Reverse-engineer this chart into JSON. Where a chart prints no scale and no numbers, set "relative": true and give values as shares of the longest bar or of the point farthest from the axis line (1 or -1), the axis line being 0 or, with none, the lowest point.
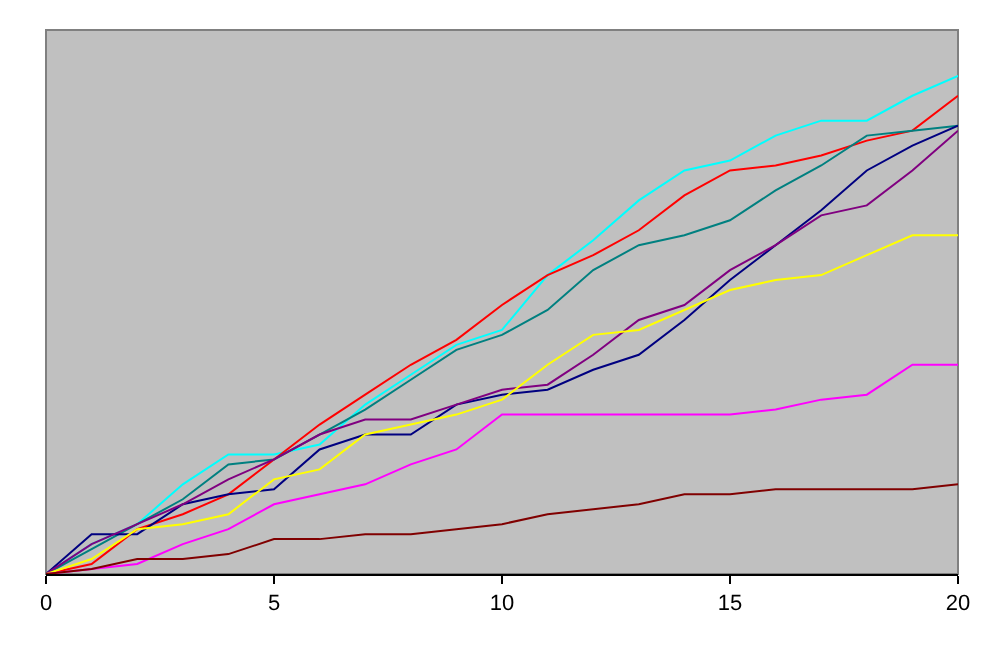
{
  "chart_data": {
    "type": "line",
    "relative": true,
    "x": [
      0,
      1,
      2,
      3,
      4,
      5,
      6,
      7,
      8,
      9,
      10,
      11,
      12,
      13,
      14,
      15,
      16,
      17,
      18,
      19,
      20
    ],
    "xlim": [
      0,
      20
    ],
    "xticks": [
      0,
      5,
      10,
      15,
      20
    ],
    "grid": false,
    "marker": "none",
    "line_style": "solid",
    "series": [
      {
        "color": "#00ffff",
        "values": [
          0,
          0.06,
          0.1,
          0.18,
          0.24,
          0.24,
          0.26,
          0.34,
          0.4,
          0.46,
          0.49,
          0.6,
          0.67,
          0.75,
          0.81,
          0.83,
          0.88,
          0.91,
          0.91,
          0.96,
          1
        ]
      },
      {
        "color": "#ff0000",
        "values": [
          0,
          0.02,
          0.09,
          0.12,
          0.16,
          0.23,
          0.3,
          0.36,
          0.42,
          0.47,
          0.54,
          0.6,
          0.64,
          0.69,
          0.76,
          0.81,
          0.82,
          0.84,
          0.87,
          0.89,
          0.96
        ]
      },
      {
        "color": "#008080",
        "values": [
          0,
          0.05,
          0.1,
          0.15,
          0.22,
          0.23,
          0.28,
          0.33,
          0.39,
          0.45,
          0.48,
          0.53,
          0.61,
          0.66,
          0.68,
          0.71,
          0.77,
          0.82,
          0.88,
          0.89,
          0.9
        ]
      },
      {
        "color": "#000080",
        "values": [
          0,
          0.08,
          0.08,
          0.14,
          0.16,
          0.17,
          0.25,
          0.28,
          0.28,
          0.34,
          0.36,
          0.37,
          0.41,
          0.44,
          0.51,
          0.59,
          0.66,
          0.73,
          0.81,
          0.86,
          0.9
        ]
      },
      {
        "color": "#800080",
        "values": [
          0,
          0.06,
          0.1,
          0.14,
          0.19,
          0.23,
          0.28,
          0.31,
          0.31,
          0.34,
          0.37,
          0.38,
          0.44,
          0.51,
          0.54,
          0.61,
          0.66,
          0.72,
          0.74,
          0.81,
          0.89
        ]
      },
      {
        "color": "#ffff00",
        "values": [
          0,
          0.03,
          0.09,
          0.1,
          0.12,
          0.19,
          0.21,
          0.28,
          0.3,
          0.32,
          0.35,
          0.42,
          0.48,
          0.49,
          0.53,
          0.57,
          0.59,
          0.6,
          0.64,
          0.68,
          0.68
        ]
      },
      {
        "color": "#ff00ff",
        "values": [
          0,
          0.01,
          0.02,
          0.06,
          0.09,
          0.14,
          0.16,
          0.18,
          0.22,
          0.25,
          0.32,
          0.32,
          0.32,
          0.32,
          0.32,
          0.32,
          0.33,
          0.35,
          0.36,
          0.42,
          0.42
        ]
      },
      {
        "color": "#800000",
        "values": [
          0,
          0.01,
          0.03,
          0.03,
          0.04,
          0.07,
          0.07,
          0.08,
          0.08,
          0.09,
          0.1,
          0.12,
          0.13,
          0.14,
          0.16,
          0.16,
          0.17,
          0.17,
          0.17,
          0.17,
          0.18
        ]
      }
    ]
  }
}
